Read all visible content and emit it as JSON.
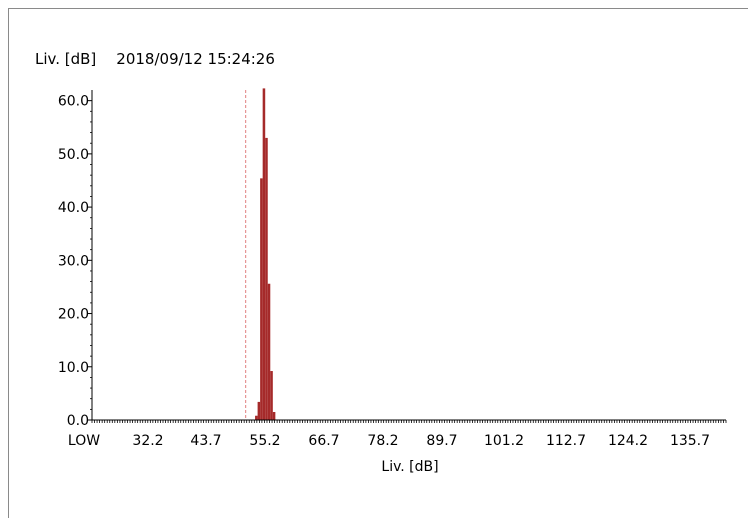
{
  "header": {
    "quantity": "Liv. [dB]",
    "timestamp": "2018/09/12 15:24:26"
  },
  "colors": {
    "bar": "#a52a2a",
    "marker": "#e08080",
    "axis": "#000000"
  },
  "chart_data": {
    "type": "bar",
    "xlabel": "Liv. [dB]",
    "ylabel": "",
    "ylim": [
      0,
      62
    ],
    "y_ticks": [
      "0.0",
      "10.0",
      "20.0",
      "30.0",
      "40.0",
      "50.0",
      "60.0"
    ],
    "x_ticks": [
      "LOW",
      "32.2",
      "43.7",
      "55.2",
      "66.7",
      "78.2",
      "89.7",
      "101.2",
      "112.7",
      "124.2",
      "135.7"
    ],
    "bin_width_db": 0.5,
    "x_range_db": [
      20.7,
      145.7
    ],
    "marker_line_db": 51.0,
    "bars": [
      {
        "x": 53.1,
        "value": 0.8
      },
      {
        "x": 53.6,
        "value": 3.4
      },
      {
        "x": 54.1,
        "value": 45.4
      },
      {
        "x": 54.6,
        "value": 62.3
      },
      {
        "x": 55.1,
        "value": 53.0
      },
      {
        "x": 55.6,
        "value": 25.6
      },
      {
        "x": 56.1,
        "value": 9.2
      },
      {
        "x": 56.6,
        "value": 1.5
      }
    ],
    "grid": false,
    "legend": "none"
  }
}
